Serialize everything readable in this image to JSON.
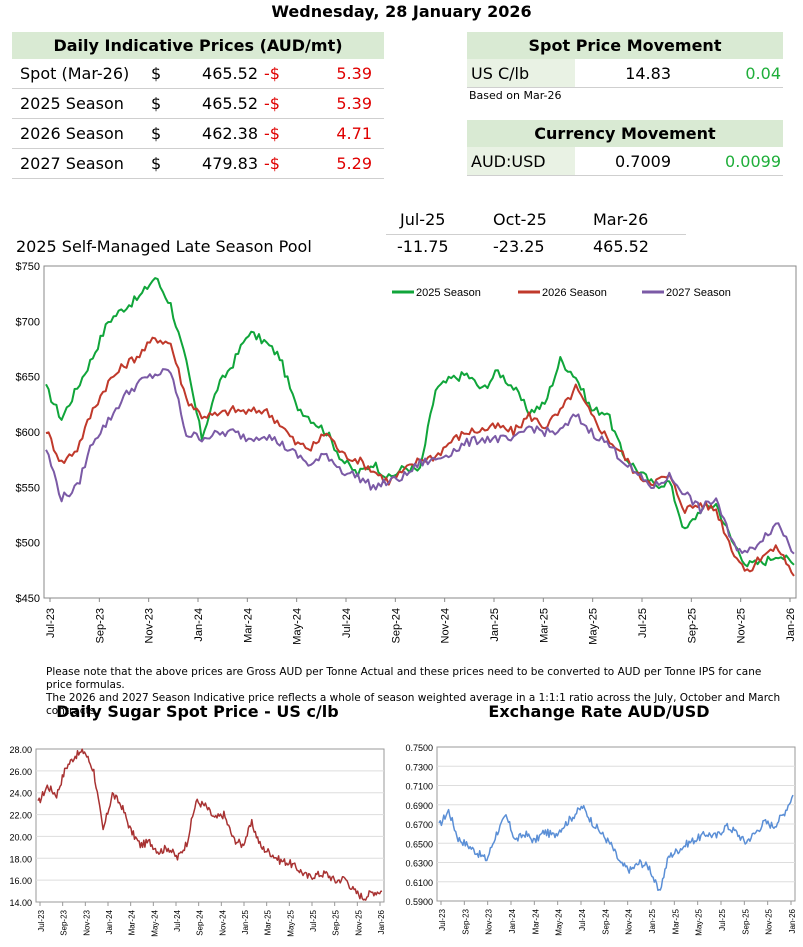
{
  "date": "Wednesday, 28 January 2026",
  "indicative": {
    "title": "Daily Indicative Prices (AUD/mt)",
    "rows": [
      {
        "label": "Spot (Mar-26)",
        "cur": "$",
        "price": "465.52",
        "sign": "-$",
        "change": "5.39"
      },
      {
        "label": "2025 Season",
        "cur": "$",
        "price": "465.52",
        "sign": "-$",
        "change": "5.39"
      },
      {
        "label": "2026 Season",
        "cur": "$",
        "price": "462.38",
        "sign": "-$",
        "change": "4.71"
      },
      {
        "label": "2027 Season",
        "cur": "$",
        "price": "479.83",
        "sign": "-$",
        "change": "5.29"
      }
    ]
  },
  "spot_movement": {
    "title": "Spot Price Movement",
    "label": "US C/lb",
    "value": "14.83",
    "change": "0.04",
    "note": "Based on Mar-26"
  },
  "currency_movement": {
    "title": "Currency Movement",
    "label": "AUD:USD",
    "value": "0.7009",
    "change": "0.0099"
  },
  "pool": {
    "headers": [
      "Jul-25",
      "Oct-25",
      "Mar-26"
    ],
    "label": "2025 Self-Managed Late Season Pool",
    "values": [
      "-11.75",
      "-23.25",
      "465.52"
    ]
  },
  "footnote": [
    "Please note that the above prices are Gross AUD per Tonne Actual and these prices need to be converted to AUD per Tonne IPS for cane price formulas.",
    "The 2026 and 2027 Season Indicative price reflects a whole of season weighted average in a 1:1:1 ratio across the July, October and March contracts."
  ],
  "colors": {
    "green": "#1fae3a",
    "red": "#e00000",
    "header_bg": "#d9ead3",
    "season2025": "#10a53a",
    "season2026": "#c0392b",
    "season2027": "#7b5aa6",
    "sugar": "#a83232",
    "fx": "#5b8fd6"
  },
  "chart_data": [
    {
      "type": "line",
      "id": "main",
      "title": "",
      "yticks": [
        "$450",
        "$500",
        "$550",
        "$600",
        "$650",
        "$700",
        "$750"
      ],
      "ylim": [
        450,
        750
      ],
      "xticks": [
        "Jul-23",
        "Sep-23",
        "Nov-23",
        "Jan-24",
        "Mar-24",
        "May-24",
        "Jul-24",
        "Sep-24",
        "Nov-24",
        "Jan-25",
        "Mar-25",
        "May-25",
        "Jul-25",
        "Sep-25",
        "Nov-25",
        "Jan-26"
      ],
      "legend_position": "top-right",
      "series": [
        {
          "name": "2025 Season",
          "values": [
            640,
            612,
            640,
            668,
            700,
            712,
            722,
            740,
            715,
            662,
            595,
            640,
            662,
            690,
            682,
            668,
            625,
            612,
            600,
            575,
            562,
            572,
            558,
            568,
            565,
            638,
            648,
            652,
            638,
            655,
            640,
            618,
            625,
            665,
            650,
            620,
            618,
            580,
            565,
            552,
            555,
            510,
            530,
            535,
            502,
            480,
            482,
            490,
            480
          ]
        },
        {
          "name": "2026 Season",
          "values": [
            602,
            572,
            585,
            620,
            645,
            660,
            670,
            685,
            680,
            630,
            615,
            615,
            620,
            618,
            620,
            608,
            590,
            585,
            600,
            580,
            575,
            565,
            555,
            565,
            575,
            578,
            592,
            600,
            602,
            605,
            600,
            615,
            605,
            618,
            640,
            615,
            595,
            580,
            560,
            555,
            560,
            530,
            535,
            530,
            495,
            472,
            490,
            495,
            470
          ]
        },
        {
          "name": "2027 Season",
          "values": [
            585,
            540,
            550,
            592,
            610,
            632,
            645,
            652,
            655,
            598,
            595,
            598,
            600,
            594,
            598,
            590,
            580,
            570,
            580,
            565,
            560,
            550,
            555,
            560,
            572,
            575,
            582,
            590,
            594,
            594,
            592,
            605,
            600,
            600,
            615,
            600,
            590,
            575,
            560,
            550,
            560,
            545,
            530,
            540,
            500,
            490,
            505,
            518,
            490
          ]
        }
      ]
    },
    {
      "type": "line",
      "id": "sugar",
      "title": "Daily Sugar Spot Price - US c/lb",
      "yticks": [
        "14.00",
        "16.00",
        "18.00",
        "20.00",
        "22.00",
        "24.00",
        "26.00",
        "28.00"
      ],
      "ylim": [
        14,
        28
      ],
      "xticks": [
        "Jul-23",
        "Sep-23",
        "Nov-23",
        "Jan-24",
        "Mar-24",
        "May-24",
        "Jul-24",
        "Sep-24",
        "Nov-24",
        "Jan-25",
        "Mar-25",
        "May-25",
        "Jul-25",
        "Sep-25",
        "Nov-25",
        "Jan-26"
      ],
      "series": [
        {
          "name": "",
          "values": [
            23.0,
            24.6,
            23.8,
            26.3,
            27.4,
            27.8,
            26.0,
            20.5,
            23.9,
            22.8,
            20.5,
            19.2,
            19.5,
            18.6,
            19.0,
            18.0,
            19.4,
            23.2,
            22.8,
            21.6,
            22.0,
            19.8,
            19.2,
            21.2,
            19.0,
            18.5,
            17.8,
            17.6,
            17.0,
            16.3,
            16.5,
            16.6,
            15.9,
            16.2,
            15.0,
            14.4,
            14.9,
            15.0
          ]
        }
      ]
    },
    {
      "type": "line",
      "id": "fx",
      "title": "Exchange Rate AUD/USD",
      "yticks": [
        "0.5900",
        "0.6100",
        "0.6300",
        "0.6500",
        "0.6700",
        "0.6900",
        "0.7100",
        "0.7300",
        "0.7500"
      ],
      "ylim": [
        0.59,
        0.75
      ],
      "xticks": [
        "Jul-23",
        "Sep-23",
        "Nov-23",
        "Jan-24",
        "Mar-24",
        "May-24",
        "Jul-24",
        "Sep-24",
        "Nov-24",
        "Jan-25",
        "Mar-25",
        "May-25",
        "Jul-25",
        "Sep-25",
        "Nov-25",
        "Jan-26"
      ],
      "series": [
        {
          "name": "",
          "values": [
            0.668,
            0.684,
            0.655,
            0.648,
            0.64,
            0.633,
            0.66,
            0.678,
            0.653,
            0.66,
            0.652,
            0.662,
            0.658,
            0.668,
            0.678,
            0.688,
            0.672,
            0.66,
            0.648,
            0.628,
            0.622,
            0.63,
            0.625,
            0.598,
            0.636,
            0.643,
            0.65,
            0.655,
            0.66,
            0.657,
            0.668,
            0.662,
            0.651,
            0.66,
            0.672,
            0.668,
            0.68,
            0.7
          ]
        }
      ]
    }
  ]
}
